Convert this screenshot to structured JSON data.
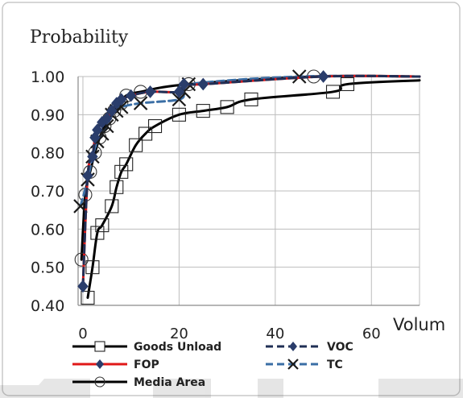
{
  "chart_data": {
    "type": "line",
    "title": "Probability",
    "xlabel": "Volum",
    "ylabel": "",
    "xlim": [
      -1,
      70
    ],
    "ylim": [
      0.4,
      1.0
    ],
    "xticks": [
      "0",
      "20",
      "40",
      "60"
    ],
    "xtick_values": [
      0,
      20,
      40,
      60
    ],
    "yticks": [
      "0.40",
      "0.50",
      "0.60",
      "0.70",
      "0.80",
      "0.90",
      "1.00"
    ],
    "ytick_values": [
      0.4,
      0.5,
      0.6,
      0.7,
      0.8,
      0.9,
      1.0
    ],
    "grid": true,
    "legend_position": "bottom",
    "series": [
      {
        "name": "Goods Unload",
        "color": "#000000",
        "dash": "solid",
        "marker": "square",
        "points": [
          [
            1,
            0.42
          ],
          [
            2,
            0.5
          ],
          [
            3,
            0.59
          ],
          [
            4,
            0.61
          ],
          [
            6,
            0.66
          ],
          [
            7,
            0.71
          ],
          [
            8,
            0.75
          ],
          [
            9,
            0.77
          ],
          [
            11,
            0.82
          ],
          [
            13,
            0.85
          ],
          [
            15,
            0.87
          ],
          [
            20,
            0.9
          ],
          [
            25,
            0.91
          ],
          [
            30,
            0.92
          ],
          [
            35,
            0.94
          ],
          [
            52,
            0.96
          ],
          [
            55,
            0.98
          ],
          [
            70,
            0.99
          ]
        ]
      },
      {
        "name": "VOC",
        "color": "#1f2f55",
        "dash": "dash",
        "marker": "diamond",
        "points": [
          [
            0,
            0.45
          ],
          [
            1,
            0.74
          ],
          [
            2,
            0.79
          ],
          [
            2.5,
            0.84
          ],
          [
            3,
            0.86
          ],
          [
            4,
            0.88
          ],
          [
            5,
            0.89
          ],
          [
            6,
            0.91
          ],
          [
            7,
            0.93
          ],
          [
            8,
            0.94
          ],
          [
            10,
            0.95
          ],
          [
            14,
            0.96
          ],
          [
            20,
            0.96
          ],
          [
            21,
            0.98
          ],
          [
            25,
            0.98
          ],
          [
            50,
            1.0
          ],
          [
            70,
            1.0
          ]
        ]
      },
      {
        "name": "FOP",
        "color": "#e01818",
        "dash": "solid",
        "marker": "diamond",
        "points": [
          [
            0,
            0.45
          ],
          [
            1,
            0.74
          ],
          [
            2,
            0.79
          ],
          [
            2.5,
            0.84
          ],
          [
            3,
            0.86
          ],
          [
            4,
            0.88
          ],
          [
            5,
            0.89
          ],
          [
            6,
            0.91
          ],
          [
            7,
            0.93
          ],
          [
            8,
            0.94
          ],
          [
            10,
            0.95
          ],
          [
            14,
            0.96
          ],
          [
            20,
            0.96
          ],
          [
            21,
            0.98
          ],
          [
            25,
            0.98
          ],
          [
            50,
            1.0
          ],
          [
            70,
            1.0
          ]
        ]
      },
      {
        "name": "TC",
        "color": "#3a6ea5",
        "dash": "dash",
        "marker": "x",
        "points": [
          [
            -0.5,
            0.66
          ],
          [
            1,
            0.73
          ],
          [
            2,
            0.79
          ],
          [
            3,
            0.83
          ],
          [
            4,
            0.85
          ],
          [
            5,
            0.87
          ],
          [
            6,
            0.9
          ],
          [
            7,
            0.91
          ],
          [
            8,
            0.92
          ],
          [
            12,
            0.93
          ],
          [
            20,
            0.94
          ],
          [
            21,
            0.96
          ],
          [
            22,
            0.98
          ],
          [
            45,
            1.0
          ],
          [
            70,
            1.0
          ]
        ]
      },
      {
        "name": "Media Area",
        "color": "#000000",
        "dash": "solid",
        "marker": "circle",
        "points": [
          [
            -0.3,
            0.52
          ],
          [
            0.5,
            0.69
          ],
          [
            1.5,
            0.75
          ],
          [
            2.5,
            0.8
          ],
          [
            3.5,
            0.84
          ],
          [
            4.5,
            0.87
          ],
          [
            5.5,
            0.89
          ],
          [
            6.5,
            0.91
          ],
          [
            8,
            0.93
          ],
          [
            9,
            0.95
          ],
          [
            12,
            0.96
          ],
          [
            22,
            0.98
          ],
          [
            48,
            1.0
          ],
          [
            70,
            1.0
          ]
        ]
      }
    ]
  }
}
